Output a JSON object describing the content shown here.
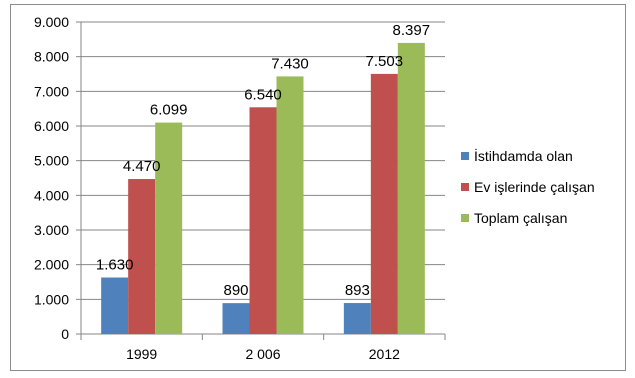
{
  "chart_data": {
    "type": "bar",
    "categories": [
      "1999",
      "2 006",
      "2012"
    ],
    "series": [
      {
        "name": "İstihdamda olan",
        "color": "#4F81BD",
        "values": [
          1630,
          890,
          893
        ],
        "labels": [
          "1.630",
          "890",
          "893"
        ]
      },
      {
        "name": "Ev işlerinde çalışan",
        "color": "#C0504D",
        "values": [
          4470,
          6540,
          7503
        ],
        "labels": [
          "4.470",
          "6.540",
          "7.503"
        ]
      },
      {
        "name": "Toplam çalışan",
        "color": "#9BBB59",
        "values": [
          6099,
          7430,
          8397
        ],
        "labels": [
          "6.099",
          "7.430",
          "8.397"
        ]
      }
    ],
    "ylim": [
      0,
      9000
    ],
    "yticks": [
      0,
      1000,
      2000,
      3000,
      4000,
      5000,
      6000,
      7000,
      8000,
      9000
    ],
    "ytick_labels": [
      "0",
      "1.000",
      "2.000",
      "3.000",
      "4.000",
      "5.000",
      "6.000",
      "7.000",
      "8.000",
      "9.000"
    ],
    "grid": true,
    "legend": "right"
  }
}
